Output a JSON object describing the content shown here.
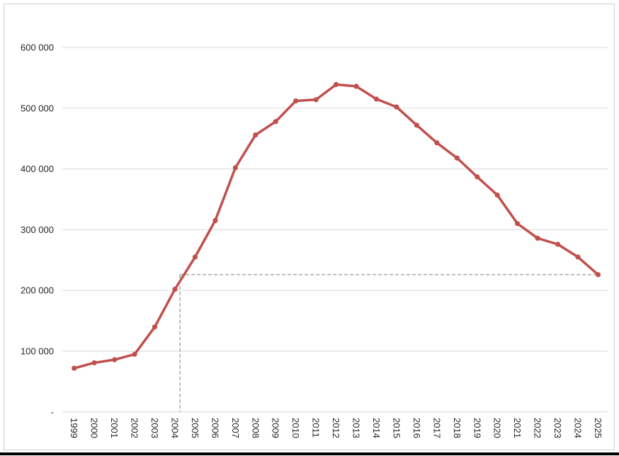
{
  "page": {
    "background": "#ffffff",
    "frame_border_color": "#d0cece",
    "bottom_bar_color": "#000000"
  },
  "chart_data": {
    "type": "line",
    "title": "",
    "xlabel": "",
    "ylabel": "",
    "legend": "none",
    "grid": "horizontal",
    "series_color": "#c0504d",
    "gridline_color": "#d9d9d9",
    "tick_label_color": "#262626",
    "marker": "circle",
    "ylim": [
      0,
      600000
    ],
    "ytick_values": [
      0,
      100000,
      200000,
      300000,
      400000,
      500000,
      600000
    ],
    "ytick_labels": [
      "-",
      "100 000",
      "200 000",
      "300 000",
      "400 000",
      "500 000",
      "600 000"
    ],
    "categories": [
      "1999",
      "2000",
      "2001",
      "2002",
      "2003",
      "2004",
      "2005",
      "2006",
      "2007",
      "2008",
      "2009",
      "2010",
      "2011",
      "2012",
      "2013",
      "2014",
      "2015",
      "2016",
      "2017",
      "2018",
      "2019",
      "2020",
      "2021",
      "2022",
      "2023",
      "2024",
      "2025"
    ],
    "values": [
      72000,
      81000,
      86000,
      95000,
      140000,
      202000,
      255000,
      315000,
      402000,
      456000,
      478000,
      512000,
      514000,
      539000,
      536000,
      515000,
      502000,
      472000,
      443000,
      418000,
      387000,
      357000,
      310000,
      286000,
      276000,
      255000,
      226000
    ],
    "annotation": {
      "type": "dashed-crosshair",
      "description": "dashed reference lines marking the 2025 level projected back to where the curve first reached it (between 2004 and 2005)",
      "level": 226000,
      "crossing_year_fraction": 2004.25,
      "to_category": "2025",
      "color": "#7f7f7f",
      "dash": "5,3"
    }
  }
}
